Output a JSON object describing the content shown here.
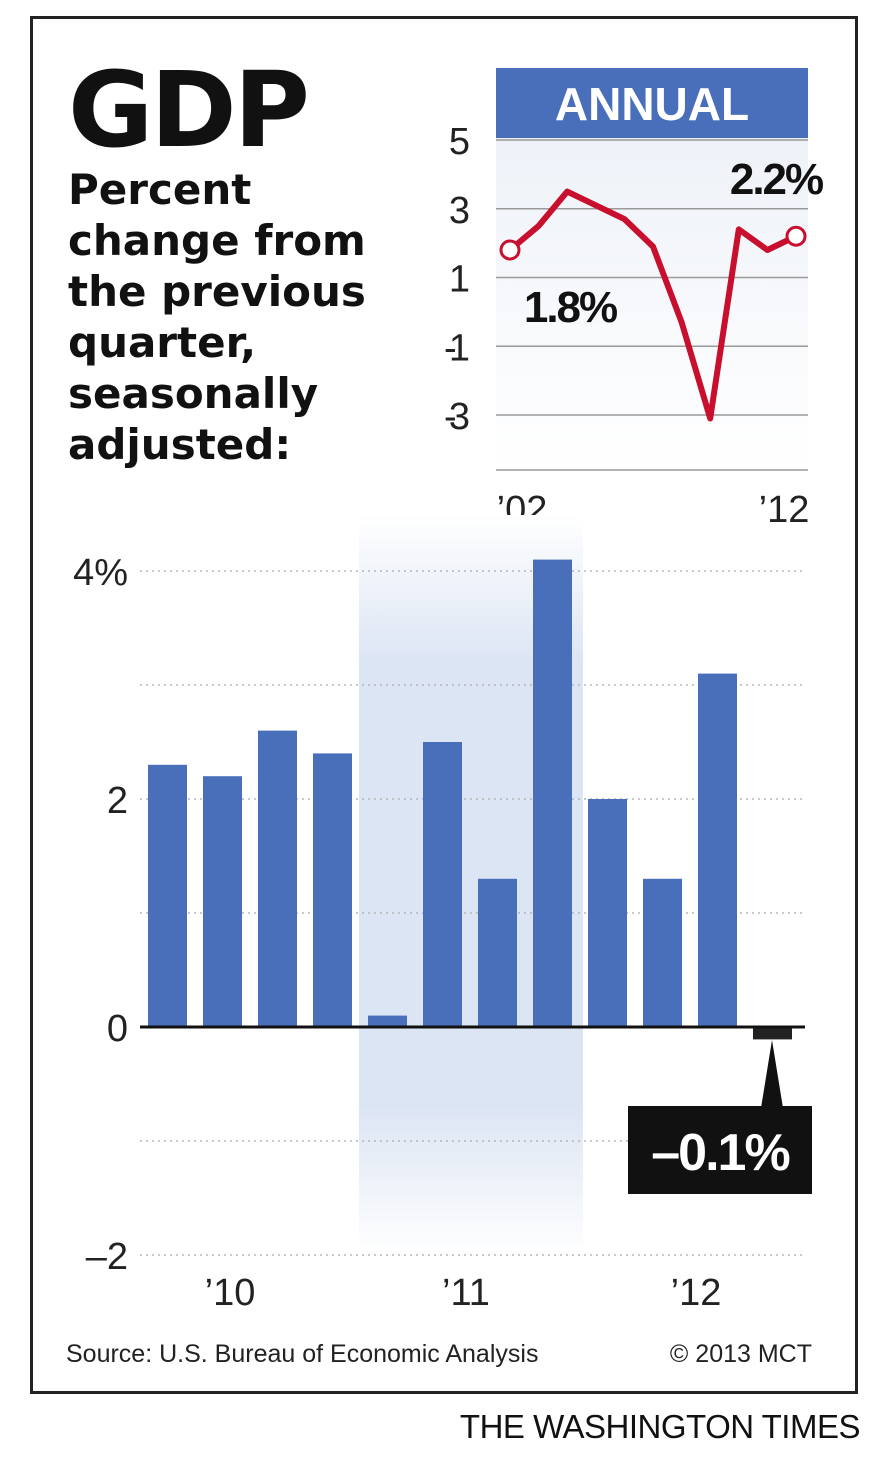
{
  "title": "GDP",
  "subtitle": "Percent change from the previous quarter, seasonally adjusted:",
  "colors": {
    "bar": "#4a6fba",
    "annual_header": "#4a6fba",
    "line": "#c8102e",
    "recession_band": "#dce5f4",
    "annual_bg": "#eef2f8"
  },
  "chart_data": [
    {
      "type": "line",
      "header": "ANNUAL",
      "x": [
        2002,
        2003,
        2004,
        2005,
        2006,
        2007,
        2008,
        2009,
        2010,
        2011,
        2012
      ],
      "series": [
        {
          "values": [
            1.8,
            2.5,
            3.5,
            3.1,
            2.7,
            1.9,
            -0.3,
            -3.1,
            2.4,
            1.8,
            2.2
          ]
        }
      ],
      "yticks": [
        "5",
        "3",
        "1",
        "-1",
        "-3"
      ],
      "ylim": [
        -4.2,
        5.5
      ],
      "xtick_labels": [
        "’02",
        "’12"
      ],
      "annotations": [
        {
          "x": 2002,
          "label": "1.8%"
        },
        {
          "x": 2012,
          "label": "2.2%"
        }
      ],
      "grid": true
    },
    {
      "type": "bar",
      "categories": [
        "2010 Q1",
        "2010 Q2",
        "2010 Q3",
        "2010 Q4",
        "2011 Q1",
        "2011 Q2",
        "2011 Q3",
        "2011 Q4",
        "2012 Q1",
        "2012 Q2",
        "2012 Q3",
        "2012 Q4"
      ],
      "values": [
        2.3,
        2.2,
        2.6,
        2.4,
        0.1,
        2.5,
        1.3,
        4.1,
        2.0,
        1.3,
        3.1,
        -0.1
      ],
      "yticks": [
        "4%",
        "2",
        "0",
        "–2"
      ],
      "ylim": [
        -2,
        4
      ],
      "xtick_labels": [
        "’10",
        "’11",
        "’12"
      ],
      "annotations": [
        {
          "category": "2012 Q4",
          "label": "–0.1%"
        }
      ],
      "grid": true
    }
  ],
  "source": "Source: U.S. Bureau of Economic Analysis",
  "copyright": "© 2013 MCT",
  "publisher": "THE WASHINGTON TIMES"
}
